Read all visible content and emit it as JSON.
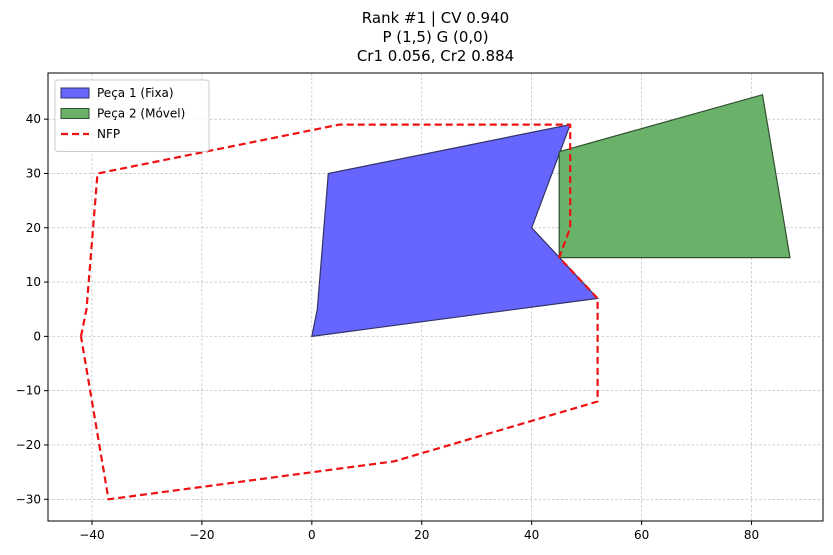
{
  "chart_data": {
    "type": "polygon",
    "title_lines": [
      "Rank #1 | CV 0.940",
      "P (1,5) G (0,0)",
      "Cr1 0.056, Cr2 0.884"
    ],
    "xlim": [
      -48,
      93
    ],
    "ylim": [
      -34,
      48.5
    ],
    "xticks": [
      -40,
      -20,
      0,
      20,
      40,
      60,
      80
    ],
    "yticks": [
      -30,
      -20,
      -10,
      0,
      10,
      20,
      30,
      40
    ],
    "grid": true,
    "legend_position": "upper-left",
    "series": [
      {
        "name": "Peça 1 (Fixa)",
        "kind": "filled-polygon",
        "fill": "#6666ff",
        "edge": "#333366",
        "points": [
          [
            0,
            0
          ],
          [
            1,
            5
          ],
          [
            3,
            30
          ],
          [
            47,
            39
          ],
          [
            40,
            20
          ],
          [
            52,
            7
          ],
          [
            0,
            0
          ]
        ]
      },
      {
        "name": "Peça 2 (Móvel)",
        "kind": "filled-polygon",
        "fill": "#6ab26a",
        "edge": "#2f4f2f",
        "points": [
          [
            45,
            14.5
          ],
          [
            45,
            34
          ],
          [
            82,
            44.5
          ],
          [
            87,
            14.5
          ],
          [
            45,
            14.5
          ]
        ]
      },
      {
        "name": "NFP",
        "kind": "dashed-line",
        "color": "#ee1111",
        "points": [
          [
            -42,
            0
          ],
          [
            -41,
            5
          ],
          [
            -39,
            30
          ],
          [
            5,
            39
          ],
          [
            47,
            39
          ],
          [
            47,
            20
          ],
          [
            45,
            14.5
          ],
          [
            52,
            7
          ],
          [
            52,
            -12
          ],
          [
            15,
            -23
          ],
          [
            -37,
            -30
          ],
          [
            -42,
            0
          ]
        ]
      }
    ]
  }
}
